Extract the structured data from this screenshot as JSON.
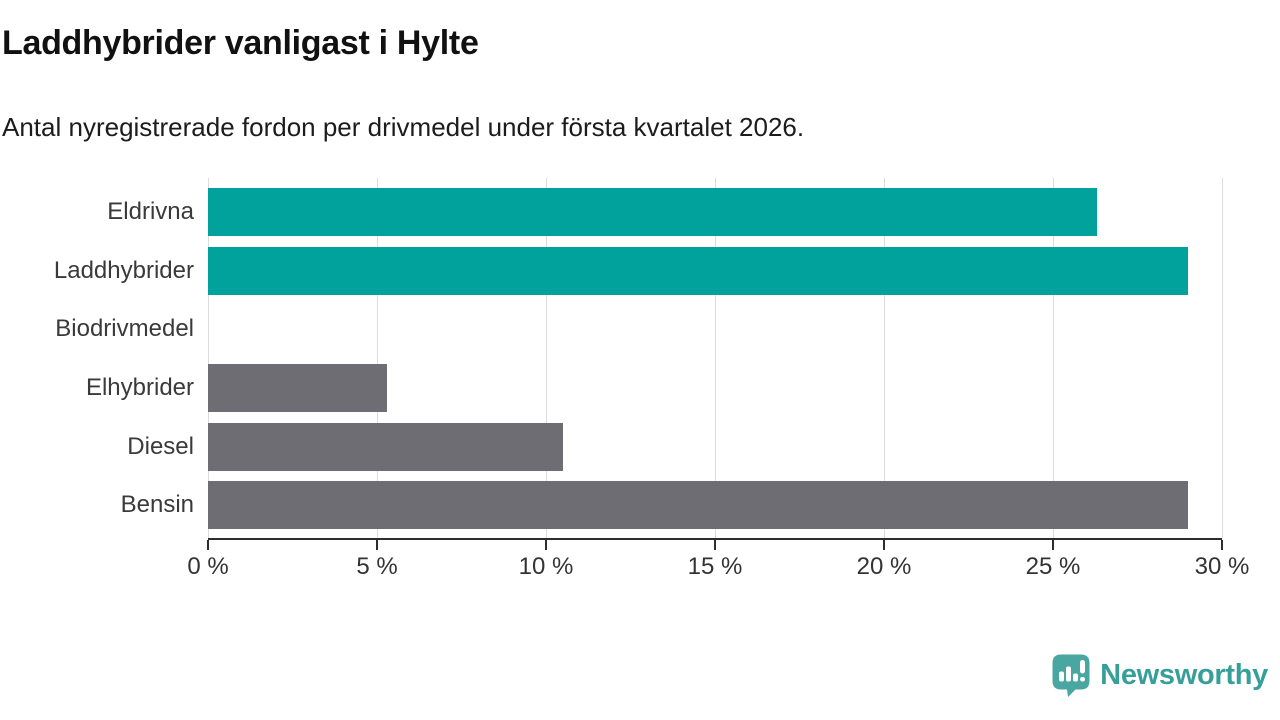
{
  "chart_data": {
    "type": "bar",
    "orientation": "horizontal",
    "title": "Laddhybrider vanligast i Hylte",
    "subtitle": "Antal nyregistrerade fordon per drivmedel under första kvartalet 2026.",
    "categories": [
      "Eldrivna",
      "Laddhybrider",
      "Biodrivmedel",
      "Elhybrider",
      "Diesel",
      "Bensin"
    ],
    "values": [
      26.3,
      29,
      0,
      5.3,
      10.5,
      29
    ],
    "bar_colors": [
      "#00a29b",
      "#00a29b",
      "#6d6d73",
      "#6d6d73",
      "#6d6d73",
      "#6d6d73"
    ],
    "xlabel": "",
    "ylabel": "",
    "xlim": [
      0,
      30
    ],
    "xticks": [
      0,
      5,
      10,
      15,
      20,
      25,
      30
    ],
    "xtick_labels": [
      "0 %",
      "5 %",
      "10 %",
      "15 %",
      "20 %",
      "25 %",
      "30 %"
    ],
    "grid": true,
    "legend": "none"
  },
  "colors": {
    "highlight_teal": "#00a29b",
    "neutral_gray": "#6d6d73",
    "gridline": "#dcdcdc",
    "axis": "#2d2d2d",
    "text_dark": "#111111",
    "brand_teal": "#379f9a",
    "logo_fill": "#4aa6a1"
  },
  "branding": {
    "logo_text": "Newsworthy"
  }
}
